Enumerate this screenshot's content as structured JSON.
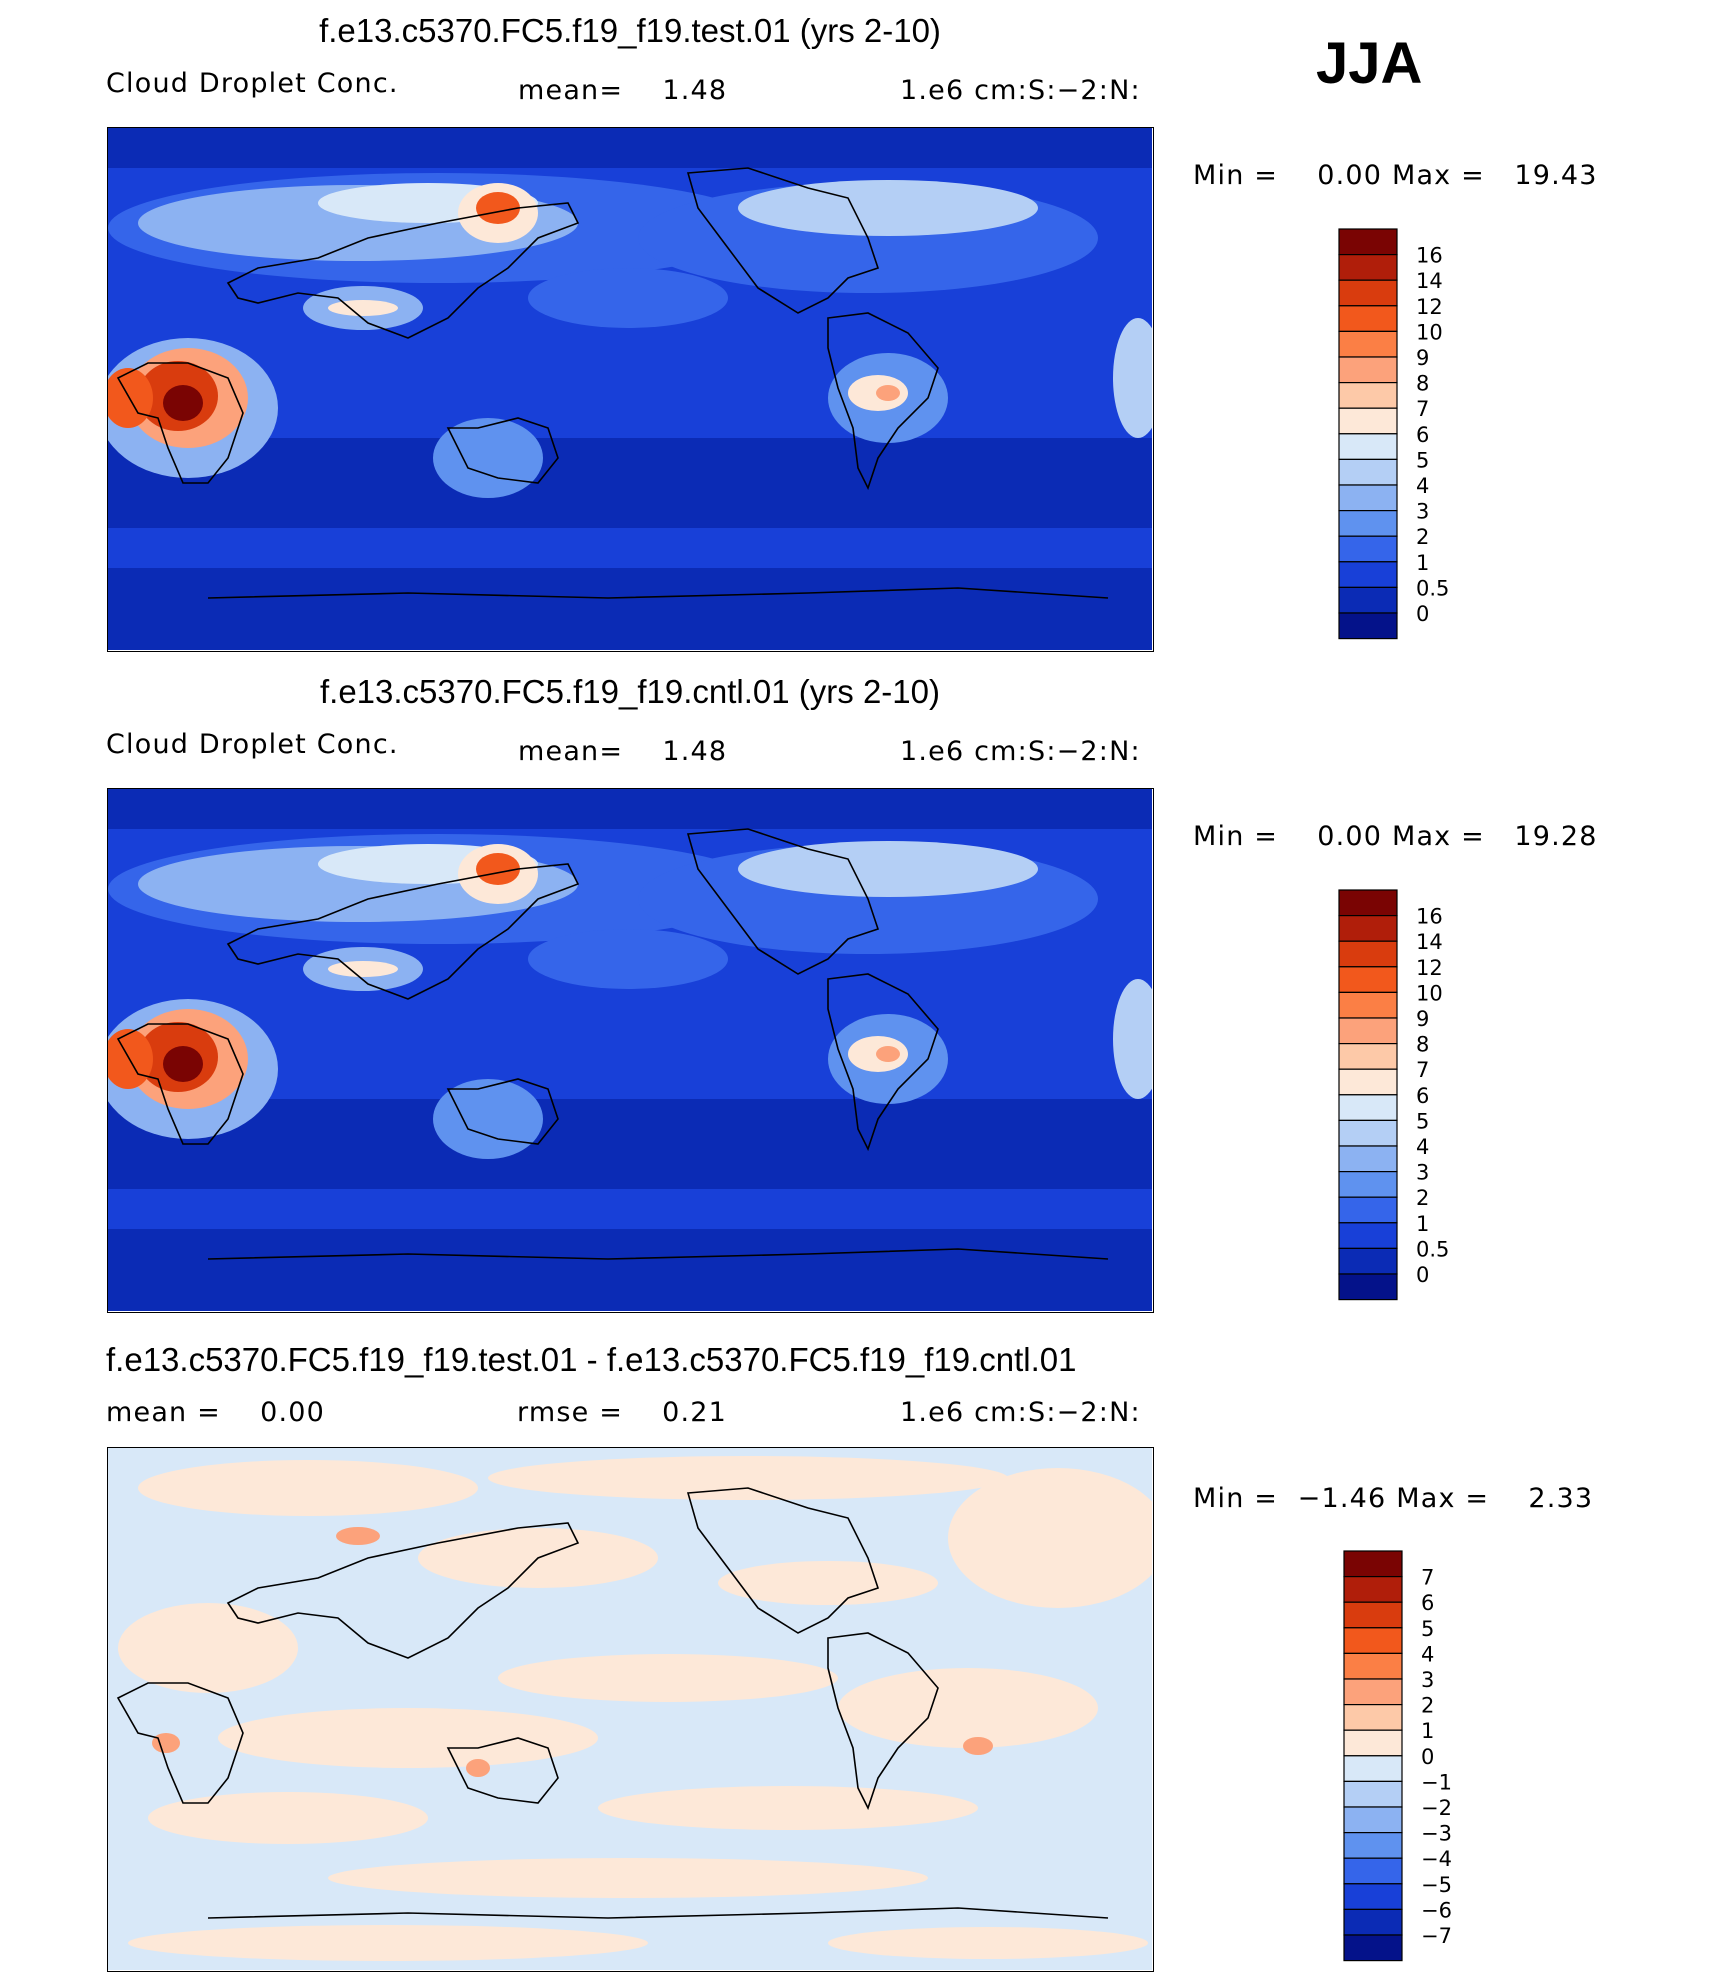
{
  "season": "JJA",
  "panels": [
    {
      "title": "f.e13.c5370.FC5.f19_f19.test.01 (yrs 2-10)",
      "left_label": "Cloud Droplet Conc.",
      "center_label": "mean=    1.48",
      "right_label": "1.e6 cm:S:−2:N:",
      "minmax": "Min =    0.00 Max =   19.43"
    },
    {
      "title": "f.e13.c5370.FC5.f19_f19.cntl.01 (yrs 2-10)",
      "left_label": "Cloud Droplet Conc.",
      "center_label": "mean=    1.48",
      "right_label": "1.e6 cm:S:−2:N:",
      "minmax": "Min =    0.00 Max =   19.28"
    },
    {
      "title": "f.e13.c5370.FC5.f19_f19.test.01 - f.e13.c5370.FC5.f19_f19.cntl.01",
      "left_label": "mean =    0.00",
      "center_label": "rmse =    0.21",
      "right_label": "1.e6 cm:S:−2:N:",
      "minmax": "Min =  −1.46 Max =    2.33"
    }
  ],
  "chart_data": [
    {
      "type": "heatmap",
      "title": "f.e13.c5370.FC5.f19_f19.test.01 (yrs 2-10)",
      "variable": "Cloud Droplet Conc.",
      "units": "1.e6 cm:S:−2:N:",
      "mean": 1.48,
      "min": 0.0,
      "max": 19.43,
      "levels": [
        "16",
        "14",
        "12",
        "10",
        "9",
        "8",
        "7",
        "6",
        "5",
        "4",
        "3",
        "2",
        "1",
        "0.5",
        "0"
      ],
      "colors": [
        "#7a0403",
        "#b01e0a",
        "#d93c0e",
        "#f2581c",
        "#fb7f45",
        "#fca27b",
        "#fdc9a8",
        "#fde8d8",
        "#d8e8f8",
        "#b4cff5",
        "#8cb2f2",
        "#5f92ef",
        "#3565ea",
        "#1840d8",
        "#0b2bb5",
        "#04128a"
      ]
    },
    {
      "type": "heatmap",
      "title": "f.e13.c5370.FC5.f19_f19.cntl.01 (yrs 2-10)",
      "variable": "Cloud Droplet Conc.",
      "units": "1.e6 cm:S:−2:N:",
      "mean": 1.48,
      "min": 0.0,
      "max": 19.28,
      "levels": [
        "16",
        "14",
        "12",
        "10",
        "9",
        "8",
        "7",
        "6",
        "5",
        "4",
        "3",
        "2",
        "1",
        "0.5",
        "0"
      ],
      "colors": [
        "#7a0403",
        "#b01e0a",
        "#d93c0e",
        "#f2581c",
        "#fb7f45",
        "#fca27b",
        "#fdc9a8",
        "#fde8d8",
        "#d8e8f8",
        "#b4cff5",
        "#8cb2f2",
        "#5f92ef",
        "#3565ea",
        "#1840d8",
        "#0b2bb5",
        "#04128a"
      ]
    },
    {
      "type": "heatmap",
      "title": "f.e13.c5370.FC5.f19_f19.test.01 - f.e13.c5370.FC5.f19_f19.cntl.01",
      "variable": "difference",
      "units": "1.e6 cm:S:−2:N:",
      "mean": 0.0,
      "rmse": 0.21,
      "min": -1.46,
      "max": 2.33,
      "levels": [
        "7",
        "6",
        "5",
        "4",
        "3",
        "2",
        "1",
        "0",
        "−1",
        "−2",
        "−3",
        "−4",
        "−5",
        "−6",
        "−7"
      ],
      "colors": [
        "#7a0403",
        "#b01e0a",
        "#d93c0e",
        "#f2581c",
        "#fb7f45",
        "#fca27b",
        "#fdc9a8",
        "#fde8d8",
        "#d8e8f8",
        "#b4cff5",
        "#8cb2f2",
        "#5f92ef",
        "#3565ea",
        "#1840d8",
        "#0b2bb5",
        "#04128a"
      ]
    }
  ]
}
